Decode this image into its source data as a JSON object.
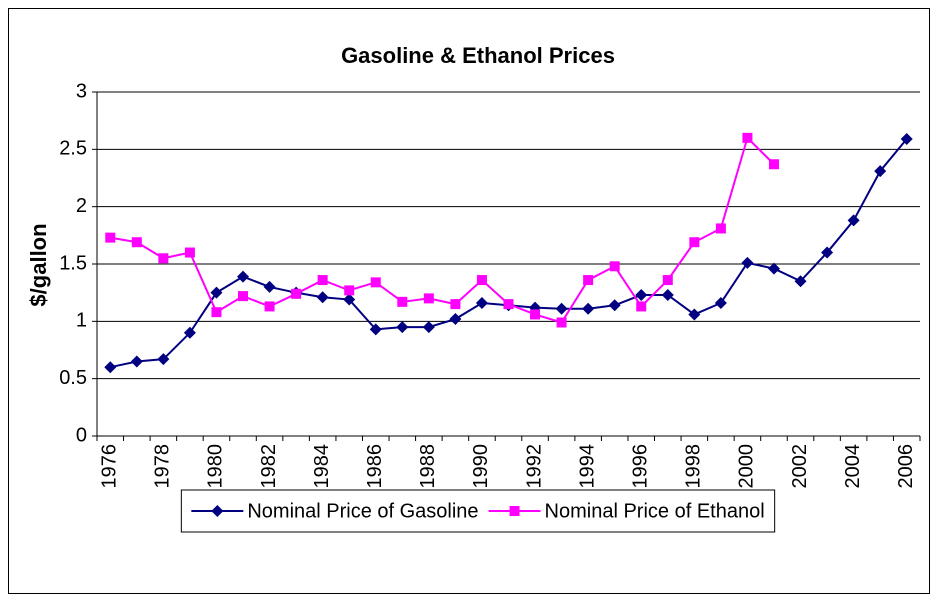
{
  "chart_data": {
    "type": "line",
    "title": "Gasoline & Ethanol Prices",
    "y_label": "$/gallon",
    "categories": [
      "1976",
      null,
      "1978",
      null,
      "1980",
      null,
      "1982",
      null,
      "1984",
      null,
      "1986",
      null,
      "1988",
      null,
      "1990",
      null,
      "1992",
      null,
      "1994",
      null,
      "1996",
      null,
      "1998",
      null,
      "2000",
      null,
      "2002",
      null,
      "2004",
      null,
      "2006"
    ],
    "series": [
      {
        "name": "Nominal Price of Gasoline",
        "color": "#000080",
        "marker": "diamond",
        "values": [
          0.6,
          0.65,
          0.67,
          0.9,
          1.25,
          1.39,
          1.3,
          1.25,
          1.21,
          1.19,
          0.93,
          0.95,
          0.95,
          1.02,
          1.16,
          1.14,
          1.12,
          1.11,
          1.11,
          1.14,
          1.23,
          1.23,
          1.06,
          1.16,
          1.51,
          1.46,
          1.35,
          1.6,
          1.88,
          2.31,
          2.59
        ]
      },
      {
        "name": "Nominal Price of Ethanol",
        "color": "#ff00ff",
        "marker": "square",
        "values": [
          1.73,
          1.69,
          1.55,
          1.6,
          1.08,
          1.22,
          1.13,
          1.24,
          1.36,
          1.27,
          1.34,
          1.17,
          1.2,
          1.15,
          1.36,
          1.15,
          1.06,
          0.99,
          1.36,
          1.48,
          1.13,
          1.36,
          1.69,
          1.81,
          2.6,
          2.37,
          null,
          null,
          null,
          null,
          null
        ]
      }
    ],
    "ylim": [
      0,
      3
    ],
    "yticks": [
      0,
      0.5,
      1,
      1.5,
      2,
      2.5,
      3
    ],
    "grid": true,
    "legend": "bottom"
  }
}
